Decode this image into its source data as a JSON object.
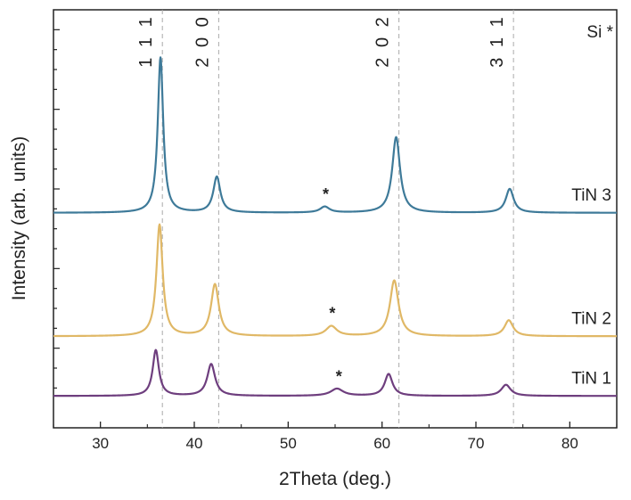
{
  "chart_data": {
    "type": "line",
    "title": "",
    "xlabel": "2Theta (deg.)",
    "ylabel": "Intensity (arb. units)",
    "xlim": [
      25,
      85
    ],
    "x_ticks": [
      30,
      40,
      50,
      60,
      70,
      80
    ],
    "y_ticks_visible": false,
    "ylim": [
      0,
      10.5
    ],
    "grid": false,
    "legend_note": "Si *",
    "reference_lines": [
      {
        "x": 36.6,
        "label": "1 1 1"
      },
      {
        "x": 42.6,
        "label": "2 0 0"
      },
      {
        "x": 61.8,
        "label": "2 0 2"
      },
      {
        "x": 74.0,
        "label": "3 1 1"
      }
    ],
    "series": [
      {
        "name": "TiN 3",
        "color": "#3e7a99",
        "offset": 5.4,
        "peaks": [
          {
            "x": 36.4,
            "h": 3.9,
            "w": 0.35
          },
          {
            "x": 42.4,
            "h": 0.9,
            "w": 0.45
          },
          {
            "x": 53.9,
            "h": 0.15,
            "w": 0.6
          },
          {
            "x": 61.5,
            "h": 1.9,
            "w": 0.5
          },
          {
            "x": 73.6,
            "h": 0.6,
            "w": 0.5
          }
        ],
        "si_marker_x": 54.0
      },
      {
        "name": "TiN 2",
        "color": "#e0b866",
        "offset": 2.3,
        "peaks": [
          {
            "x": 36.3,
            "h": 2.8,
            "w": 0.4
          },
          {
            "x": 42.2,
            "h": 1.3,
            "w": 0.5
          },
          {
            "x": 54.6,
            "h": 0.25,
            "w": 0.7
          },
          {
            "x": 61.3,
            "h": 1.4,
            "w": 0.55
          },
          {
            "x": 73.5,
            "h": 0.4,
            "w": 0.55
          }
        ],
        "si_marker_x": 54.7
      },
      {
        "name": "TiN 1",
        "color": "#6e3e7e",
        "offset": 0.8,
        "peaks": [
          {
            "x": 35.9,
            "h": 1.15,
            "w": 0.4
          },
          {
            "x": 41.8,
            "h": 0.8,
            "w": 0.5
          },
          {
            "x": 55.2,
            "h": 0.18,
            "w": 0.8
          },
          {
            "x": 60.7,
            "h": 0.55,
            "w": 0.5
          },
          {
            "x": 73.2,
            "h": 0.28,
            "w": 0.6
          }
        ],
        "si_marker_x": 55.4
      }
    ]
  }
}
